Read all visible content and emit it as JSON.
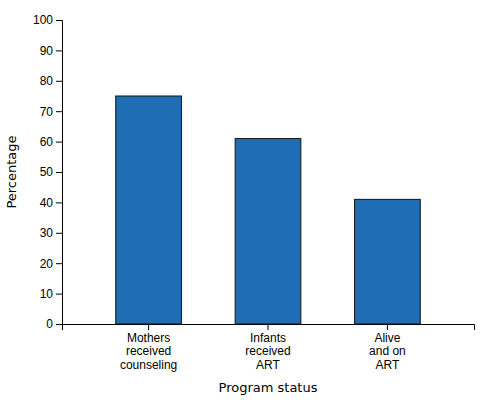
{
  "chart_data": {
    "type": "bar",
    "categories": [
      "Mothers\nreceived\ncounseling",
      "Infants\nreceived\nART",
      "Alive\nand on\nART"
    ],
    "values": [
      75,
      61,
      41
    ],
    "color": "#1F6EB5",
    "xlabel": "Program status",
    "ylabel": "Percentage",
    "ylim": [
      0,
      100
    ],
    "yticks": [
      0,
      10,
      20,
      30,
      40,
      50,
      60,
      70,
      80,
      90,
      100
    ],
    "grid": false
  }
}
